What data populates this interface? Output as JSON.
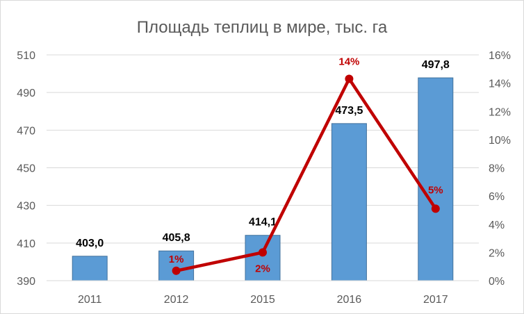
{
  "chart_data": {
    "type": "bar+line",
    "title": "Площадь теплиц в мире, тыс. га",
    "categories": [
      "2011",
      "2012",
      "2015",
      "2016",
      "2017"
    ],
    "bar_series": {
      "values": [
        403.0,
        405.8,
        414.1,
        473.5,
        497.8
      ],
      "labels": [
        "403,0",
        "405,8",
        "414,1",
        "473,5",
        "497,8"
      ],
      "color": "#5b9bd5",
      "border": "#41719c"
    },
    "line_series": {
      "x_categories": [
        "2012",
        "2015",
        "2016",
        "2017"
      ],
      "values": [
        0.7,
        2.0,
        14.3,
        5.1
      ],
      "labels": [
        "1%",
        "2%",
        "14%",
        "5%"
      ],
      "color": "#c00000"
    },
    "y_left": {
      "range": [
        390,
        510
      ],
      "ticks": [
        "390",
        "410",
        "430",
        "450",
        "470",
        "490",
        "510"
      ]
    },
    "y_right": {
      "range": [
        0,
        16
      ],
      "ticks": [
        "0%",
        "2%",
        "4%",
        "6%",
        "8%",
        "10%",
        "12%",
        "14%",
        "16%"
      ]
    },
    "grid": true,
    "legend": "none"
  }
}
